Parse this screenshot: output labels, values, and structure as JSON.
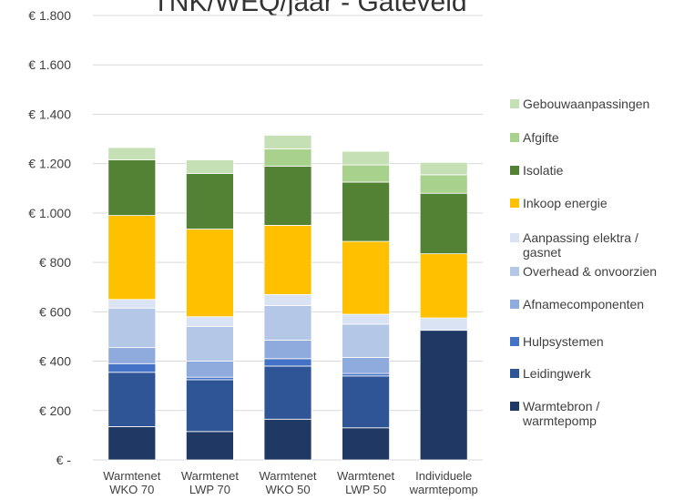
{
  "chart_data": {
    "type": "bar",
    "stacked": true,
    "title": "TNK/WEQ/jaar - Gateveld",
    "categories": [
      [
        "Warmtenet",
        "WKO 70"
      ],
      [
        "Warmtenet",
        "LWP 70"
      ],
      [
        "Warmtenet",
        "WKO 50"
      ],
      [
        "Warmtenet",
        "LWP 50"
      ],
      [
        "Individuele",
        "warmtepomp"
      ]
    ],
    "ylim": [
      0,
      1800
    ],
    "yticks": [
      {
        "value": 0,
        "label": "€ -"
      },
      {
        "value": 200,
        "label": "€ 200"
      },
      {
        "value": 400,
        "label": "€ 400"
      },
      {
        "value": 600,
        "label": "€ 600"
      },
      {
        "value": 800,
        "label": "€ 800"
      },
      {
        "value": 1000,
        "label": "€ 1.000"
      },
      {
        "value": 1200,
        "label": "€ 1.200"
      },
      {
        "value": 1400,
        "label": "€ 1.400"
      },
      {
        "value": 1600,
        "label": "€ 1.600"
      },
      {
        "value": 1800,
        "label": "€ 1.800"
      }
    ],
    "grid": true,
    "legend_position": "right",
    "series": [
      {
        "name": [
          "Warmtebron /",
          "warmtepomp"
        ],
        "color": "#1f3864",
        "values": [
          135,
          115,
          165,
          130,
          525
        ]
      },
      {
        "name": [
          "Leidingwerk"
        ],
        "color": "#2f5597",
        "values": [
          220,
          210,
          215,
          210,
          0
        ]
      },
      {
        "name": [
          "Hulpsystemen"
        ],
        "color": "#4472c4",
        "values": [
          35,
          10,
          30,
          10,
          0
        ]
      },
      {
        "name": [
          "Afnamecomponenten"
        ],
        "color": "#8faadc",
        "values": [
          65,
          65,
          75,
          65,
          0
        ]
      },
      {
        "name": [
          "Overhead & onvoorzien"
        ],
        "color": "#b4c7e7",
        "values": [
          160,
          140,
          140,
          135,
          0
        ]
      },
      {
        "name": [
          "Aanpassing elektra /",
          "gasnet"
        ],
        "color": "#dae3f3",
        "values": [
          35,
          40,
          45,
          40,
          50
        ]
      },
      {
        "name": [
          "Inkoop energie"
        ],
        "color": "#ffc000",
        "values": [
          340,
          355,
          280,
          295,
          260
        ]
      },
      {
        "name": [
          "Isolatie"
        ],
        "color": "#548235",
        "values": [
          225,
          225,
          240,
          240,
          245
        ]
      },
      {
        "name": [
          "Afgifte"
        ],
        "color": "#a9d18e",
        "values": [
          0,
          0,
          70,
          70,
          75
        ]
      },
      {
        "name": [
          "Gebouwaanpassingen"
        ],
        "color": "#c5e0b4",
        "values": [
          50,
          55,
          55,
          55,
          50
        ]
      }
    ]
  }
}
